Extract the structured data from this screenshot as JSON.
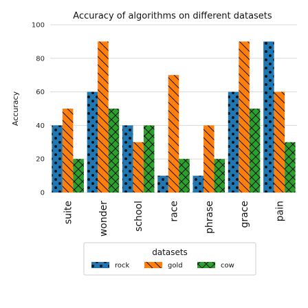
{
  "chart_data": {
    "type": "bar",
    "title": "Accuracy of algorithms on different datasets",
    "xlabel": "",
    "ylabel": "Accuracy",
    "ylim": [
      0,
      100
    ],
    "yticks": [
      0,
      20,
      40,
      60,
      80,
      100
    ],
    "grid": true,
    "categories": [
      "suite",
      "wonder",
      "school",
      "race",
      "phrase",
      "grace",
      "pain"
    ],
    "series": [
      {
        "name": "rock",
        "color": "#1f77b4",
        "values": [
          40,
          60,
          40,
          10,
          10,
          60,
          90
        ]
      },
      {
        "name": "gold",
        "color": "#ff7f0e",
        "values": [
          50,
          90,
          30,
          70,
          40,
          90,
          60
        ]
      },
      {
        "name": "cow",
        "color": "#2ca02c",
        "values": [
          20,
          50,
          40,
          20,
          20,
          50,
          30
        ]
      }
    ],
    "legend": {
      "title": "datasets",
      "placement": "bottom-center"
    }
  }
}
